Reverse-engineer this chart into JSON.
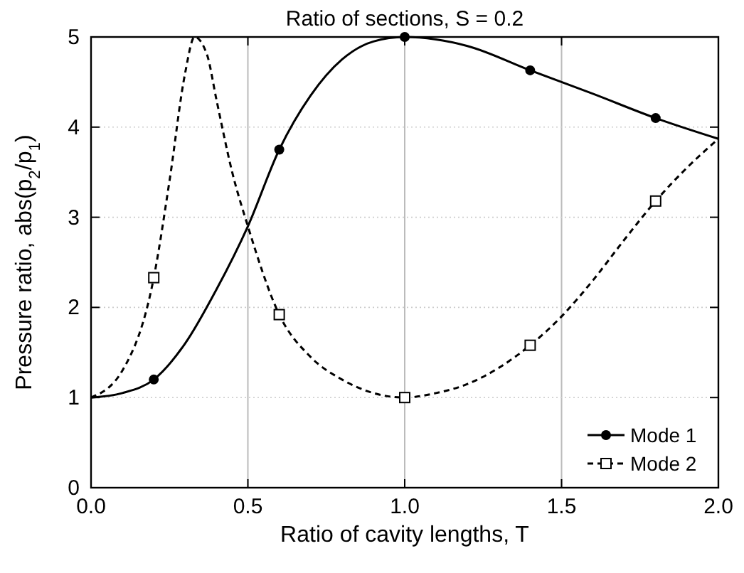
{
  "chart_data": {
    "type": "line",
    "title": "Ratio of sections, S = 0.2",
    "xlabel": "Ratio of cavity lengths, T",
    "ylabel": "Pressure ratio, abs(p$_{2}$/p$_{1}$)",
    "xlim": [
      0,
      2
    ],
    "xticks": [
      {
        "value": 0,
        "label": "0.0"
      },
      {
        "value": 0.5,
        "label": "0.5"
      },
      {
        "value": 1,
        "label": "1.0"
      },
      {
        "value": 1.5,
        "label": "1.5"
      },
      {
        "value": 2,
        "label": "2.0"
      }
    ],
    "ylim": [
      0,
      5
    ],
    "yticks": [
      0,
      1,
      2,
      3,
      4,
      5
    ],
    "grid": true,
    "legend": "bottom right",
    "series": [
      {
        "name": "Mode 1",
        "color": "#000000",
        "line_style": "solid",
        "marker": "none",
        "x": [
          0,
          0.1,
          0.2,
          0.3,
          0.4,
          0.5,
          0.6,
          0.7,
          0.8,
          0.9,
          1.0,
          1.2,
          1.4,
          1.6,
          1.8,
          2.0
        ],
        "values": [
          1.0,
          1.05,
          1.2,
          1.6,
          2.2,
          2.9,
          3.75,
          4.35,
          4.75,
          4.95,
          5.0,
          4.9,
          4.63,
          4.37,
          4.1,
          3.87
        ]
      },
      {
        "type": "scatter",
        "color": "#000000",
        "marker": "circle",
        "x": [
          0.2,
          0.6,
          1.0,
          1.4,
          1.8
        ],
        "values": [
          1.2,
          3.75,
          5.0,
          4.63,
          4.1
        ]
      },
      {
        "name": "Mode 2",
        "color": "#000000",
        "line_style": "dashed",
        "marker": "none",
        "x": [
          0,
          0.1,
          0.2,
          0.25,
          0.3,
          0.33,
          0.37,
          0.4,
          0.45,
          0.5,
          0.6,
          0.7,
          0.8,
          0.9,
          1.0,
          1.1,
          1.2,
          1.3,
          1.4,
          1.5,
          1.6,
          1.7,
          1.8,
          1.9,
          2.0
        ],
        "values": [
          1.0,
          1.3,
          2.33,
          3.4,
          4.6,
          5.0,
          4.8,
          4.3,
          3.5,
          2.9,
          1.92,
          1.45,
          1.2,
          1.05,
          1.0,
          1.05,
          1.15,
          1.33,
          1.58,
          1.9,
          2.3,
          2.75,
          3.18,
          3.55,
          3.87
        ]
      },
      {
        "type": "scatter",
        "color": "#000000",
        "marker": "square",
        "x": [
          0.2,
          0.6,
          1.0,
          1.4,
          1.8
        ],
        "values": [
          2.33,
          1.92,
          1.0,
          1.58,
          3.18
        ]
      }
    ]
  }
}
